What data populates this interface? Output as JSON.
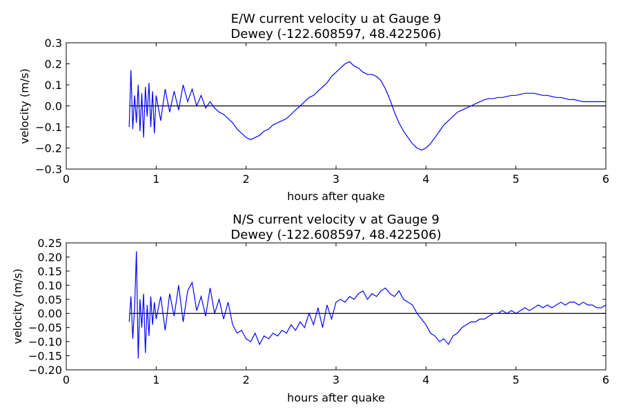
{
  "chart_data": [
    {
      "type": "line",
      "title": "E/W current velocity u at Gauge 9",
      "subtitle": "Dewey  (-122.608597, 48.422506)",
      "xlabel": "hours after quake",
      "ylabel": "velocity (m/s)",
      "xlim": [
        0,
        6
      ],
      "ylim": [
        -0.3,
        0.3
      ],
      "xticks": [
        "0",
        "1",
        "2",
        "3",
        "4",
        "5",
        "6"
      ],
      "yticks": [
        "−0.3",
        "−0.2",
        "−0.1",
        "0.0",
        "0.1",
        "0.2",
        "0.3"
      ],
      "line_color": "#0000ff",
      "zero_line_color": "#000000",
      "series": [
        {
          "x": [
            0.7,
            0.72,
            0.74,
            0.76,
            0.78,
            0.8,
            0.82,
            0.84,
            0.86,
            0.88,
            0.9,
            0.92,
            0.94,
            0.96,
            0.98,
            1.0,
            1.05,
            1.1,
            1.15,
            1.2,
            1.25,
            1.3,
            1.35,
            1.4,
            1.45,
            1.5,
            1.55,
            1.6,
            1.65,
            1.7,
            1.75,
            1.8,
            1.85,
            1.9,
            1.95,
            2.0,
            2.05,
            2.1,
            2.15,
            2.2,
            2.25,
            2.3,
            2.35,
            2.4,
            2.45,
            2.5,
            2.55,
            2.6,
            2.65,
            2.7,
            2.75,
            2.8,
            2.85,
            2.9,
            2.95,
            3.0,
            3.05,
            3.1,
            3.15,
            3.2,
            3.25,
            3.3,
            3.35,
            3.4,
            3.45,
            3.5,
            3.55,
            3.6,
            3.65,
            3.7,
            3.75,
            3.8,
            3.85,
            3.9,
            3.95,
            4.0,
            4.05,
            4.1,
            4.15,
            4.2,
            4.25,
            4.3,
            4.35,
            4.4,
            4.45,
            4.5,
            4.55,
            4.6,
            4.65,
            4.7,
            4.75,
            4.8,
            4.85,
            4.9,
            4.95,
            5.0,
            5.05,
            5.1,
            5.15,
            5.2,
            5.25,
            5.3,
            5.35,
            5.4,
            5.45,
            5.5,
            5.55,
            5.6,
            5.65,
            5.7,
            5.75,
            5.8,
            5.85,
            5.9,
            5.95,
            6.0
          ],
          "y": [
            -0.1,
            0.17,
            -0.11,
            0.05,
            -0.08,
            0.1,
            -0.12,
            0.06,
            -0.15,
            0.09,
            -0.05,
            0.11,
            -0.1,
            0.07,
            -0.13,
            0.05,
            -0.07,
            0.08,
            -0.03,
            0.07,
            -0.02,
            0.1,
            0.02,
            0.08,
            0.0,
            0.05,
            -0.01,
            0.02,
            -0.01,
            -0.03,
            -0.04,
            -0.06,
            -0.08,
            -0.11,
            -0.13,
            -0.15,
            -0.16,
            -0.15,
            -0.14,
            -0.12,
            -0.11,
            -0.09,
            -0.08,
            -0.07,
            -0.06,
            -0.04,
            -0.02,
            0.0,
            0.02,
            0.04,
            0.05,
            0.07,
            0.09,
            0.11,
            0.14,
            0.16,
            0.18,
            0.2,
            0.21,
            0.19,
            0.18,
            0.16,
            0.15,
            0.15,
            0.14,
            0.12,
            0.08,
            0.03,
            -0.03,
            -0.08,
            -0.12,
            -0.15,
            -0.18,
            -0.2,
            -0.21,
            -0.2,
            -0.18,
            -0.15,
            -0.12,
            -0.09,
            -0.07,
            -0.05,
            -0.03,
            -0.02,
            -0.01,
            0.0,
            0.01,
            0.02,
            0.03,
            0.035,
            0.035,
            0.04,
            0.04,
            0.045,
            0.05,
            0.05,
            0.055,
            0.06,
            0.06,
            0.06,
            0.055,
            0.05,
            0.05,
            0.045,
            0.04,
            0.04,
            0.035,
            0.03,
            0.03,
            0.025,
            0.02,
            0.02,
            0.02,
            0.02,
            0.02,
            0.02
          ]
        }
      ]
    },
    {
      "type": "line",
      "title": "N/S current velocity v at Gauge 9",
      "subtitle": "Dewey  (-122.608597, 48.422506)",
      "xlabel": "hours after quake",
      "ylabel": "velocity (m/s)",
      "xlim": [
        0,
        6
      ],
      "ylim": [
        -0.2,
        0.25
      ],
      "xticks": [
        "0",
        "1",
        "2",
        "3",
        "4",
        "5",
        "6"
      ],
      "yticks": [
        "−0.20",
        "−0.15",
        "−0.10",
        "−0.05",
        "0.00",
        "0.05",
        "0.10",
        "0.15",
        "0.20",
        "0.25"
      ],
      "line_color": "#0000ff",
      "zero_line_color": "#000000",
      "series": [
        {
          "x": [
            0.7,
            0.72,
            0.74,
            0.76,
            0.78,
            0.8,
            0.82,
            0.84,
            0.86,
            0.88,
            0.9,
            0.92,
            0.94,
            0.96,
            0.98,
            1.0,
            1.05,
            1.1,
            1.15,
            1.2,
            1.25,
            1.3,
            1.35,
            1.4,
            1.45,
            1.5,
            1.55,
            1.6,
            1.65,
            1.7,
            1.75,
            1.8,
            1.85,
            1.9,
            1.95,
            2.0,
            2.05,
            2.1,
            2.15,
            2.2,
            2.25,
            2.3,
            2.35,
            2.4,
            2.45,
            2.5,
            2.55,
            2.6,
            2.65,
            2.7,
            2.75,
            2.8,
            2.85,
            2.9,
            2.95,
            3.0,
            3.05,
            3.1,
            3.15,
            3.2,
            3.25,
            3.3,
            3.35,
            3.4,
            3.45,
            3.5,
            3.55,
            3.6,
            3.65,
            3.7,
            3.75,
            3.8,
            3.85,
            3.9,
            3.95,
            4.0,
            4.05,
            4.1,
            4.15,
            4.2,
            4.25,
            4.3,
            4.35,
            4.4,
            4.45,
            4.5,
            4.55,
            4.6,
            4.65,
            4.7,
            4.75,
            4.8,
            4.85,
            4.9,
            4.95,
            5.0,
            5.05,
            5.1,
            5.15,
            5.2,
            5.25,
            5.3,
            5.35,
            5.4,
            5.45,
            5.5,
            5.55,
            5.6,
            5.65,
            5.7,
            5.75,
            5.8,
            5.85,
            5.9,
            5.95,
            6.0
          ],
          "y": [
            -0.03,
            0.06,
            -0.09,
            0.02,
            0.22,
            -0.16,
            0.05,
            -0.05,
            0.07,
            -0.14,
            0.03,
            -0.08,
            0.06,
            -0.04,
            0.04,
            -0.02,
            0.06,
            -0.06,
            0.07,
            -0.01,
            0.1,
            -0.03,
            0.08,
            0.11,
            0.01,
            0.06,
            -0.01,
            0.09,
            0.0,
            0.05,
            -0.02,
            0.04,
            -0.04,
            -0.07,
            -0.06,
            -0.09,
            -0.1,
            -0.07,
            -0.11,
            -0.08,
            -0.09,
            -0.07,
            -0.08,
            -0.06,
            -0.07,
            -0.04,
            -0.06,
            -0.03,
            -0.05,
            0.0,
            -0.04,
            0.02,
            -0.05,
            0.03,
            -0.02,
            0.04,
            0.05,
            0.04,
            0.06,
            0.05,
            0.07,
            0.08,
            0.05,
            0.07,
            0.06,
            0.08,
            0.09,
            0.07,
            0.06,
            0.08,
            0.05,
            0.04,
            0.03,
            0.0,
            -0.02,
            -0.04,
            -0.07,
            -0.08,
            -0.1,
            -0.09,
            -0.11,
            -0.08,
            -0.07,
            -0.05,
            -0.04,
            -0.03,
            -0.03,
            -0.02,
            -0.02,
            -0.01,
            0.0,
            0.0,
            0.01,
            0.0,
            0.01,
            0.0,
            0.01,
            0.02,
            0.01,
            0.02,
            0.03,
            0.02,
            0.03,
            0.02,
            0.03,
            0.04,
            0.03,
            0.04,
            0.04,
            0.03,
            0.04,
            0.03,
            0.03,
            0.02,
            0.02,
            0.03
          ]
        }
      ]
    }
  ]
}
